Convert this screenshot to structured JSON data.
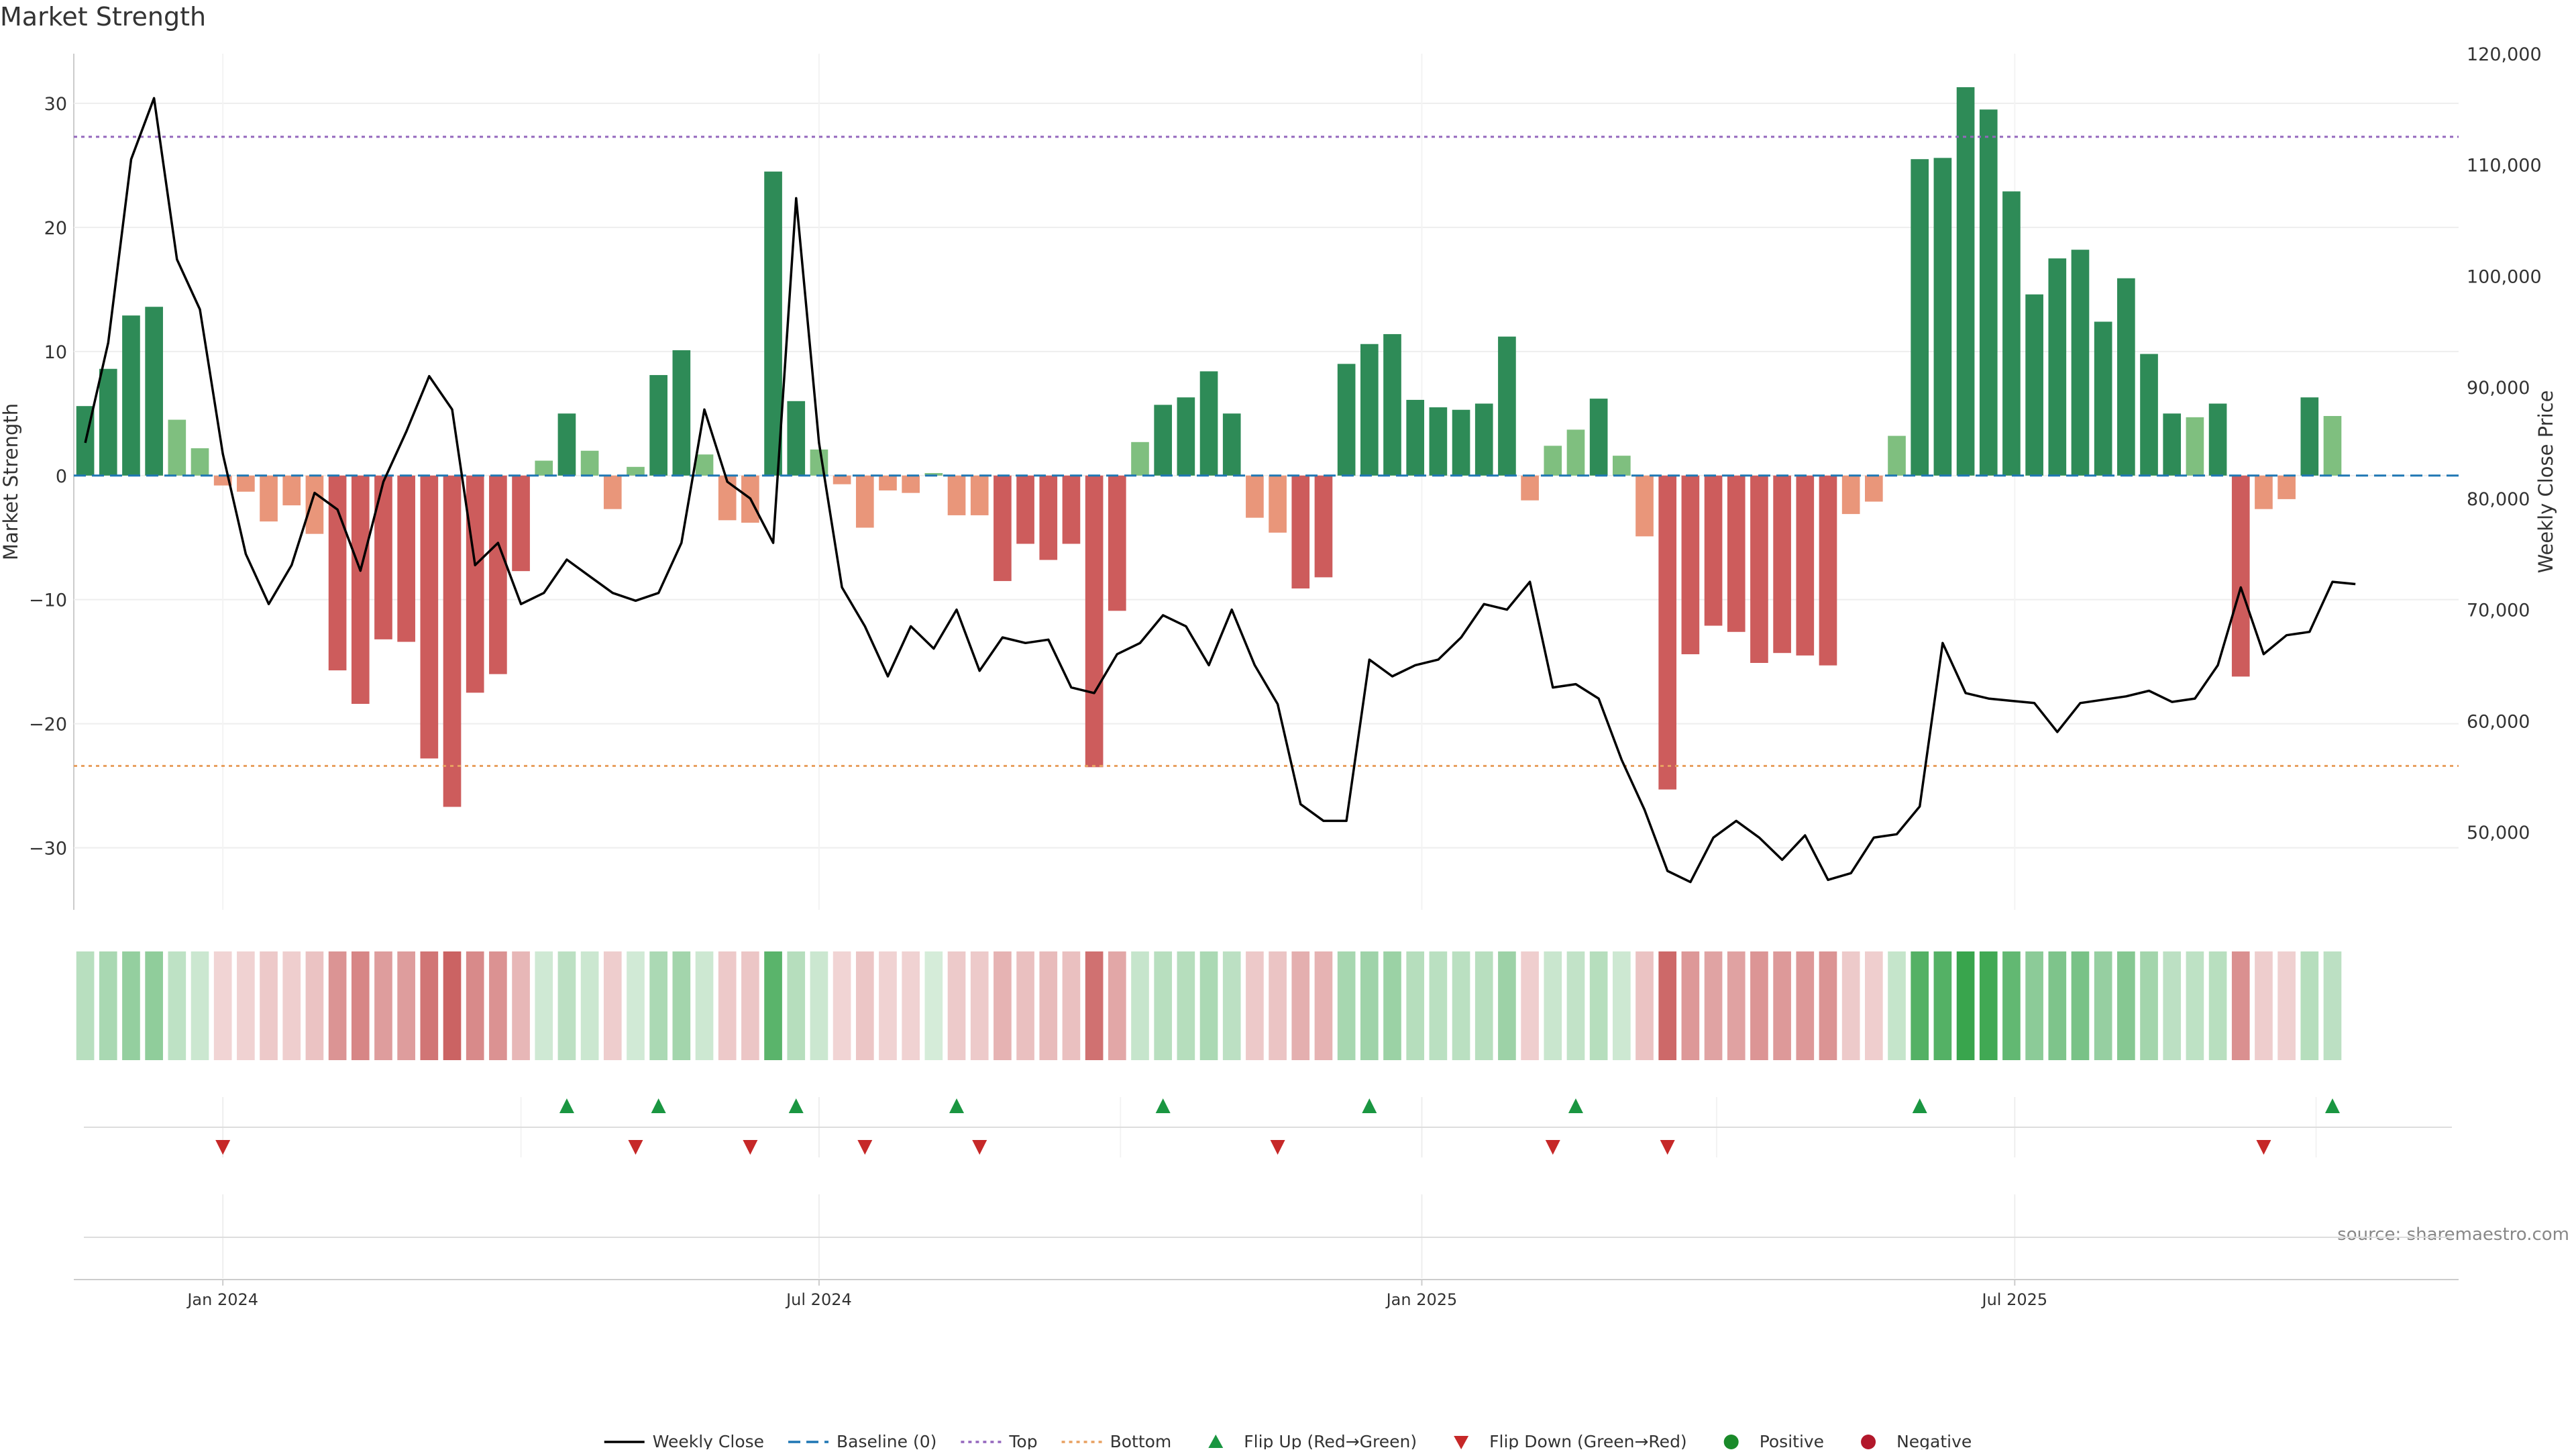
{
  "chart_data": {
    "type": "bar",
    "title": "Market Strength",
    "ylabel": "Market Strength",
    "y2label": "Weekly Close Price",
    "ylim": [
      -35,
      34
    ],
    "y2lim": [
      43000,
      120000
    ],
    "yticks": [
      30,
      20,
      10,
      0,
      -10,
      -20,
      -30
    ],
    "yticklabels": [
      "30",
      "20",
      "10",
      "0",
      "−10",
      "−20",
      "−30"
    ],
    "y2ticks": [
      120000,
      110000,
      100000,
      90000,
      80000,
      70000,
      60000,
      50000
    ],
    "y2ticklabels": [
      "120,000",
      "110,000",
      "100,000",
      "90,000",
      "80,000",
      "70,000",
      "60,000",
      "50,000"
    ],
    "x_start": "2023-11-20",
    "x_end": "2025-11-10",
    "x_step_days": 7,
    "xticks": [
      {
        "date": "2024-01-01",
        "label": "Jan 2024"
      },
      {
        "date": "2024-07-01",
        "label": "Jul 2024"
      },
      {
        "date": "2025-01-01",
        "label": "Jan 2025"
      },
      {
        "date": "2025-07-01",
        "label": "Jul 2025"
      }
    ],
    "top_threshold": 27.3,
    "bottom_threshold": -23.4,
    "baseline": 0,
    "strength": [
      5.6,
      8.6,
      12.9,
      13.6,
      4.5,
      2.2,
      -0.8,
      -1.3,
      -3.7,
      -2.4,
      -4.7,
      -15.7,
      -18.4,
      -13.2,
      -13.4,
      -22.8,
      -26.7,
      -17.5,
      -16.0,
      -7.7,
      1.2,
      5.0,
      2.0,
      -2.7,
      0.7,
      8.1,
      10.1,
      1.7,
      -3.6,
      -3.8,
      24.5,
      6.0,
      2.1,
      -0.7,
      -4.2,
      -1.2,
      -1.4,
      0.2,
      -3.2,
      -3.2,
      -8.5,
      -5.5,
      -6.8,
      -5.5,
      -23.5,
      -10.9,
      2.7,
      5.7,
      6.3,
      8.4,
      5.0,
      -3.4,
      -4.6,
      -9.1,
      -8.2,
      9.0,
      10.6,
      11.4,
      6.1,
      5.5,
      5.3,
      5.8,
      11.2,
      -2.0,
      2.4,
      3.7,
      6.2,
      1.6,
      -4.9,
      -25.3,
      -14.4,
      -12.1,
      -12.6,
      -15.1,
      -14.3,
      -14.5,
      -15.3,
      -3.1,
      -2.1,
      3.2,
      25.5,
      25.6,
      31.3,
      29.5,
      22.9,
      14.6,
      17.5,
      18.2,
      12.4,
      15.9,
      9.8,
      5.0,
      4.7,
      5.8,
      -16.2,
      -2.7,
      -1.9,
      6.3,
      4.8
    ],
    "weekly_close": [
      null,
      null,
      null,
      null,
      null,
      null,
      null,
      null,
      null,
      null,
      null,
      null,
      null,
      null,
      null,
      null,
      null,
      null,
      null,
      null,
      null,
      null,
      null,
      null,
      null,
      null,
      null,
      null,
      null,
      null,
      null,
      null,
      null,
      null,
      null,
      null,
      null,
      null,
      null,
      null,
      null,
      null,
      null,
      null,
      null,
      null,
      null,
      null,
      null,
      null,
      null,
      null,
      null,
      null,
      null,
      null,
      null,
      null,
      null,
      null,
      null,
      null,
      null,
      null,
      null,
      null,
      null,
      null,
      null,
      null,
      null,
      null,
      null,
      null,
      null,
      null,
      null,
      null,
      null,
      null,
      null,
      null,
      null,
      null,
      null,
      null,
      null,
      null,
      null,
      null,
      null,
      null,
      null,
      null,
      null,
      null,
      null,
      null,
      null,
      null
    ],
    "series": [
      {
        "name": "Weekly Close",
        "values": [
          85000,
          94000,
          110500,
          116000,
          101500,
          97000,
          84000,
          75000,
          70500,
          74000,
          80500,
          79000,
          73500,
          81500,
          86000,
          91000,
          88000,
          74000,
          76000,
          70500,
          71500,
          74500,
          73000,
          71500,
          70800,
          71500,
          76000,
          88000,
          81500,
          80000,
          76000,
          107000,
          85000,
          72000,
          68500,
          64000,
          68500,
          66500,
          70000,
          64500,
          67500,
          67000,
          67300,
          63000,
          62500,
          66000,
          67000,
          69500,
          68500,
          65000,
          70000,
          65000,
          61500,
          52500,
          51000,
          51000,
          65500,
          64000,
          65000,
          65500,
          67500,
          70500,
          70000,
          72500,
          63000,
          63300,
          62000,
          56500,
          52000,
          46500,
          45500,
          49500,
          51000,
          49500,
          47500,
          49700,
          45700,
          46300,
          49500,
          49800,
          52300,
          67000,
          62500,
          62000,
          61800,
          61600,
          59000,
          61600,
          61900,
          62200,
          62700,
          61700,
          62000,
          65000,
          72000,
          66000,
          67700,
          68000,
          72500,
          72300
        ]
      },
      {
        "name": "Baseline (0)"
      },
      {
        "name": "Top"
      },
      {
        "name": "Bottom"
      }
    ],
    "flip_up_indices": [
      21,
      25,
      31,
      38,
      47,
      56,
      65,
      80,
      98
    ],
    "flip_down_indices": [
      6,
      24,
      29,
      34,
      39,
      52,
      64,
      69,
      95
    ],
    "legend": [
      {
        "label": "Weekly Close",
        "kind": "line-solid",
        "color": "#000000"
      },
      {
        "label": "Baseline (0)",
        "kind": "line-dashed",
        "color": "#1f77b4"
      },
      {
        "label": "Top",
        "kind": "line-dotted",
        "color": "#9467bd"
      },
      {
        "label": "Bottom",
        "kind": "line-dotted",
        "color": "#e8a060"
      },
      {
        "label": "Flip Up (Red→Green)",
        "kind": "triangle-up",
        "color": "#1a9641"
      },
      {
        "label": "Flip Down (Green→Red)",
        "kind": "triangle-down",
        "color": "#c62828"
      },
      {
        "label": "Positive",
        "kind": "dot",
        "color": "#1a8a2a"
      },
      {
        "label": "Negative",
        "kind": "dot",
        "color": "#b2182b"
      }
    ],
    "legend_position": "bottom-center",
    "source": "source: sharemaestro.com",
    "colors": {
      "strong_positive": "#2e8b57",
      "weak_positive": "#7fbf7f",
      "strong_negative": "#cd5c5c",
      "weak_negative": "#e9967a",
      "line": "#000000",
      "baseline": "#1f77b4",
      "top": "#9467bd",
      "bottom": "#e8a060"
    }
  }
}
